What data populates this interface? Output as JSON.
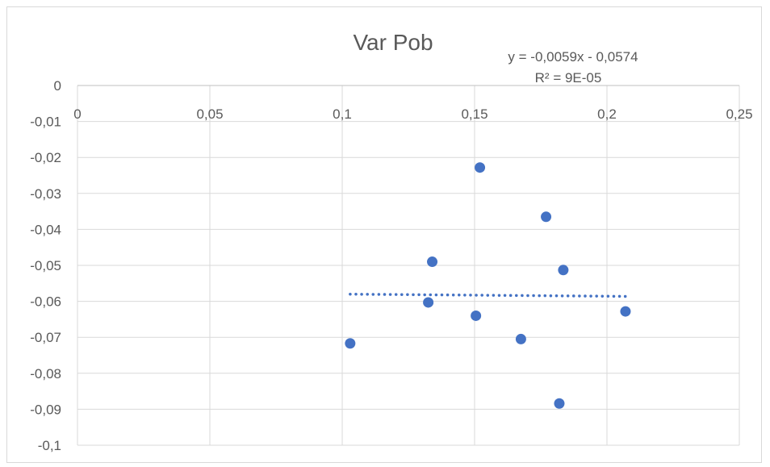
{
  "chart_data": {
    "type": "scatter",
    "title": "Var Pob",
    "xlabel": "",
    "ylabel": "",
    "xlim": [
      0,
      0.25
    ],
    "ylim": [
      -0.1,
      0
    ],
    "x_ticks": [
      "0",
      "0,05",
      "0,1",
      "0,15",
      "0,2",
      "0,25"
    ],
    "y_ticks": [
      "0",
      "-0,01",
      "-0,02",
      "-0,03",
      "-0,04",
      "-0,05",
      "-0,06",
      "-0,07",
      "-0,08",
      "-0,09",
      "-0,1"
    ],
    "grid": true,
    "x_axis_position": "top",
    "series": [
      {
        "color": "#4472c4",
        "points": [
          {
            "x": 0.103,
            "y": -0.0717
          },
          {
            "x": 0.1325,
            "y": -0.0603
          },
          {
            "x": 0.134,
            "y": -0.049
          },
          {
            "x": 0.1505,
            "y": -0.064
          },
          {
            "x": 0.152,
            "y": -0.0228
          },
          {
            "x": 0.1675,
            "y": -0.0705
          },
          {
            "x": 0.177,
            "y": -0.0365
          },
          {
            "x": 0.182,
            "y": -0.0884
          },
          {
            "x": 0.1835,
            "y": -0.0513
          },
          {
            "x": 0.207,
            "y": -0.0628
          }
        ]
      }
    ],
    "trendline": {
      "type": "linear",
      "color": "#4472c4",
      "style": "dotted",
      "slope": -0.0059,
      "intercept": -0.0574,
      "x_range": [
        0.103,
        0.207
      ],
      "equation": "y = -0,0059x - 0,0574",
      "r_squared": "R² = 9E-05"
    }
  }
}
